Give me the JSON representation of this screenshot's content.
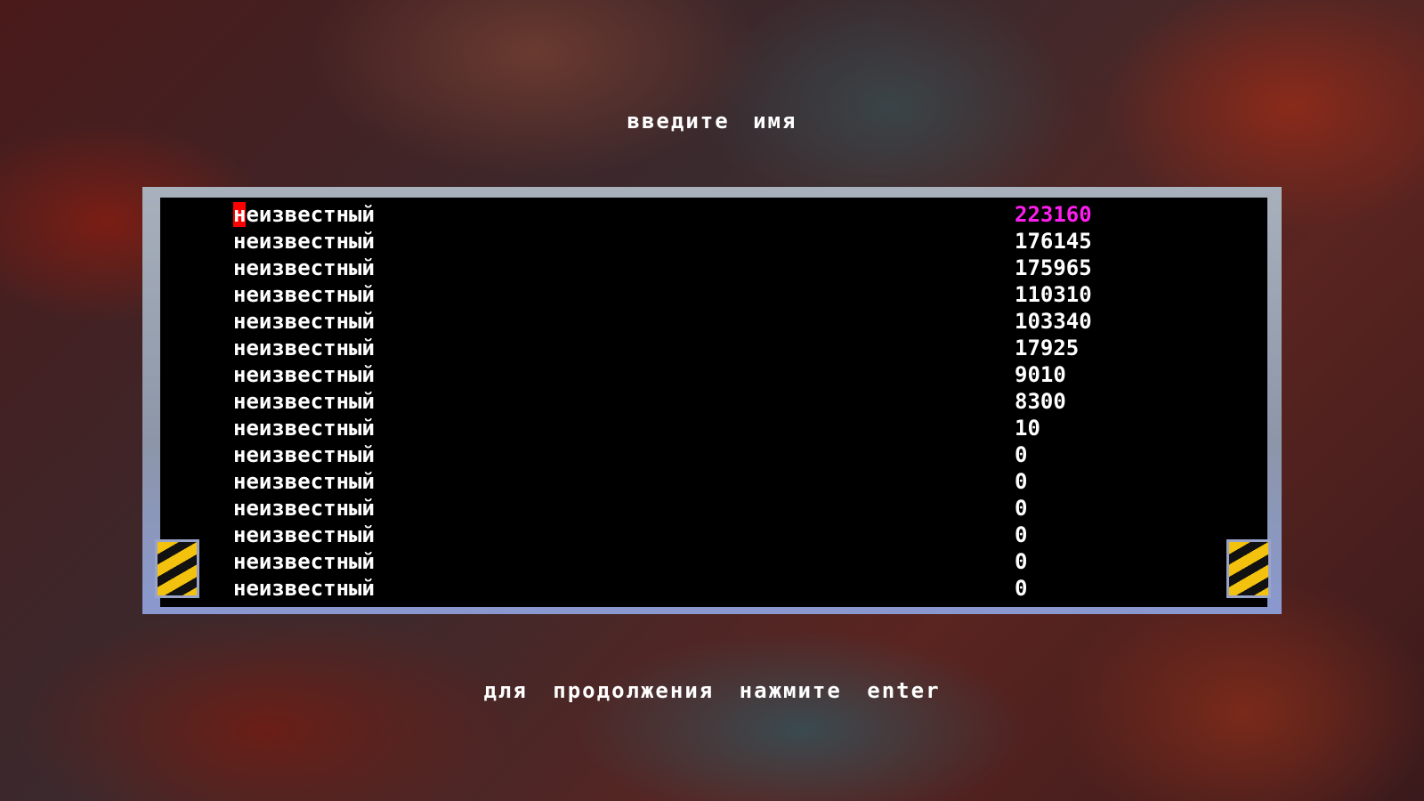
{
  "header": {
    "title": "введите имя"
  },
  "highscores": [
    {
      "name": "неизвестный",
      "score": "223160",
      "highlighted": true
    },
    {
      "name": "неизвестный",
      "score": "176145"
    },
    {
      "name": "неизвестный",
      "score": "175965"
    },
    {
      "name": "неизвестный",
      "score": "110310"
    },
    {
      "name": "неизвестный",
      "score": "103340"
    },
    {
      "name": "неизвестный",
      "score": "17925"
    },
    {
      "name": "неизвестный",
      "score": "9010"
    },
    {
      "name": "неизвестный",
      "score": "8300"
    },
    {
      "name": "неизвестный",
      "score": "10"
    },
    {
      "name": "неизвестный",
      "score": "0"
    },
    {
      "name": "неизвестный",
      "score": "0"
    },
    {
      "name": "неизвестный",
      "score": "0"
    },
    {
      "name": "неизвестный",
      "score": "0"
    },
    {
      "name": "неизвестный",
      "score": "0"
    },
    {
      "name": "неизвестный",
      "score": "0"
    }
  ],
  "footer": {
    "prompt": "для продолжения нажмите enter"
  },
  "colors": {
    "highlight_score": "#ff1ef0",
    "cursor": "#ff0000",
    "hazard": "#f2c20e"
  }
}
